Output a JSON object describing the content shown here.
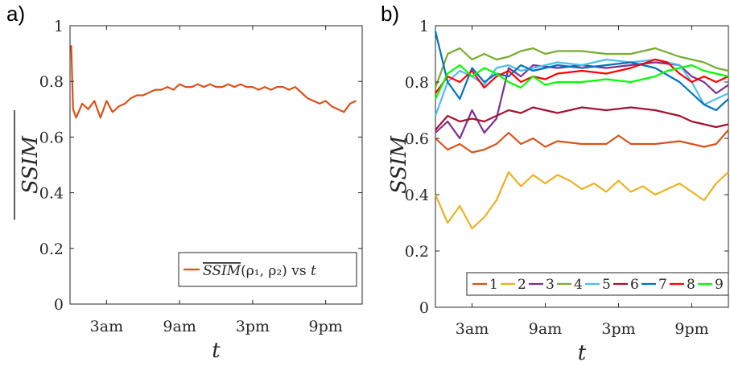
{
  "chart_data": [
    {
      "type": "line",
      "panel_label": "a)",
      "xlabel": "t",
      "ylabel": "SSIM",
      "ylabel_overline": true,
      "xlim": [
        0,
        24
      ],
      "ylim": [
        0,
        1
      ],
      "xticks": [
        {
          "label": "3am",
          "value": 3
        },
        {
          "label": "9am",
          "value": 9
        },
        {
          "label": "3pm",
          "value": 15
        },
        {
          "label": "9pm",
          "value": 21
        }
      ],
      "yticks": [
        "0",
        "0.2",
        "0.4",
        "0.6",
        "0.8",
        "1"
      ],
      "legend": {
        "position": "bottom-right",
        "entry_main": "SSIM",
        "entry_rest": "(ρ₁, ρ₂) vs ",
        "entry_var": "t"
      },
      "series": [
        {
          "color": "#D95319",
          "points": [
            [
              0.1,
              0.93
            ],
            [
              0.25,
              0.7
            ],
            [
              0.5,
              0.67
            ],
            [
              1,
              0.72
            ],
            [
              1.5,
              0.7
            ],
            [
              2,
              0.73
            ],
            [
              2.5,
              0.67
            ],
            [
              3,
              0.73
            ],
            [
              3.5,
              0.69
            ],
            [
              4,
              0.71
            ],
            [
              4.5,
              0.72
            ],
            [
              5,
              0.74
            ],
            [
              5.5,
              0.75
            ],
            [
              6,
              0.75
            ],
            [
              6.5,
              0.76
            ],
            [
              7,
              0.77
            ],
            [
              7.5,
              0.77
            ],
            [
              8,
              0.78
            ],
            [
              8.5,
              0.77
            ],
            [
              9,
              0.79
            ],
            [
              9.5,
              0.78
            ],
            [
              10,
              0.78
            ],
            [
              10.5,
              0.79
            ],
            [
              11,
              0.78
            ],
            [
              11.5,
              0.79
            ],
            [
              12,
              0.78
            ],
            [
              12.5,
              0.78
            ],
            [
              13,
              0.79
            ],
            [
              13.5,
              0.78
            ],
            [
              14,
              0.79
            ],
            [
              14.5,
              0.78
            ],
            [
              15,
              0.78
            ],
            [
              15.5,
              0.77
            ],
            [
              16,
              0.78
            ],
            [
              16.5,
              0.77
            ],
            [
              17,
              0.78
            ],
            [
              17.5,
              0.78
            ],
            [
              18,
              0.77
            ],
            [
              18.5,
              0.78
            ],
            [
              19,
              0.76
            ],
            [
              19.5,
              0.74
            ],
            [
              20,
              0.73
            ],
            [
              20.5,
              0.72
            ],
            [
              21,
              0.73
            ],
            [
              21.5,
              0.71
            ],
            [
              22,
              0.7
            ],
            [
              22.5,
              0.69
            ],
            [
              23,
              0.72
            ],
            [
              23.5,
              0.73
            ]
          ]
        }
      ]
    },
    {
      "type": "line",
      "panel_label": "b)",
      "xlabel": "t",
      "ylabel": "SSIM",
      "ylabel_overline": false,
      "xlim": [
        0,
        24
      ],
      "ylim": [
        0,
        1
      ],
      "xticks": [
        {
          "label": "3am",
          "value": 3
        },
        {
          "label": "9am",
          "value": 9
        },
        {
          "label": "3pm",
          "value": 15
        },
        {
          "label": "9pm",
          "value": 21
        }
      ],
      "yticks": [
        "0",
        "0.2",
        "0.4",
        "0.6",
        "0.8",
        "1"
      ],
      "legend": {
        "position": "bottom",
        "entries": [
          "1",
          "2",
          "3",
          "4",
          "5",
          "6",
          "7",
          "8",
          "9"
        ]
      },
      "series": [
        {
          "name": "1",
          "color": "#D95319",
          "points": [
            [
              0,
              0.6
            ],
            [
              1,
              0.56
            ],
            [
              2,
              0.58
            ],
            [
              3,
              0.55
            ],
            [
              4,
              0.56
            ],
            [
              5,
              0.58
            ],
            [
              6,
              0.62
            ],
            [
              7,
              0.58
            ],
            [
              8,
              0.6
            ],
            [
              9,
              0.57
            ],
            [
              10,
              0.59
            ],
            [
              12,
              0.58
            ],
            [
              14,
              0.58
            ],
            [
              15,
              0.61
            ],
            [
              16,
              0.58
            ],
            [
              18,
              0.58
            ],
            [
              20,
              0.59
            ],
            [
              21,
              0.58
            ],
            [
              22,
              0.57
            ],
            [
              23,
              0.58
            ],
            [
              24,
              0.63
            ]
          ]
        },
        {
          "name": "2",
          "color": "#EDB120",
          "points": [
            [
              0,
              0.4
            ],
            [
              1,
              0.3
            ],
            [
              2,
              0.36
            ],
            [
              3,
              0.28
            ],
            [
              4,
              0.32
            ],
            [
              5,
              0.38
            ],
            [
              6,
              0.48
            ],
            [
              7,
              0.43
            ],
            [
              8,
              0.47
            ],
            [
              9,
              0.44
            ],
            [
              10,
              0.47
            ],
            [
              11,
              0.45
            ],
            [
              12,
              0.42
            ],
            [
              13,
              0.44
            ],
            [
              14,
              0.41
            ],
            [
              15,
              0.45
            ],
            [
              16,
              0.41
            ],
            [
              17,
              0.43
            ],
            [
              18,
              0.4
            ],
            [
              19,
              0.42
            ],
            [
              20,
              0.44
            ],
            [
              21,
              0.41
            ],
            [
              22,
              0.38
            ],
            [
              23,
              0.44
            ],
            [
              24,
              0.48
            ]
          ]
        },
        {
          "name": "3",
          "color": "#7E2F8E",
          "points": [
            [
              0,
              0.62
            ],
            [
              1,
              0.66
            ],
            [
              2,
              0.6
            ],
            [
              3,
              0.7
            ],
            [
              4,
              0.62
            ],
            [
              5,
              0.67
            ],
            [
              6,
              0.85
            ],
            [
              7,
              0.82
            ],
            [
              8,
              0.86
            ],
            [
              10,
              0.85
            ],
            [
              12,
              0.86
            ],
            [
              14,
              0.85
            ],
            [
              16,
              0.86
            ],
            [
              18,
              0.87
            ],
            [
              20,
              0.86
            ],
            [
              21,
              0.82
            ],
            [
              22,
              0.8
            ],
            [
              23,
              0.76
            ],
            [
              24,
              0.79
            ]
          ]
        },
        {
          "name": "4",
          "color": "#77AC30",
          "points": [
            [
              0,
              0.78
            ],
            [
              1,
              0.9
            ],
            [
              2,
              0.92
            ],
            [
              3,
              0.88
            ],
            [
              4,
              0.9
            ],
            [
              5,
              0.88
            ],
            [
              6,
              0.89
            ],
            [
              7,
              0.91
            ],
            [
              8,
              0.92
            ],
            [
              9,
              0.9
            ],
            [
              10,
              0.91
            ],
            [
              12,
              0.91
            ],
            [
              14,
              0.9
            ],
            [
              16,
              0.9
            ],
            [
              18,
              0.92
            ],
            [
              20,
              0.89
            ],
            [
              21,
              0.88
            ],
            [
              22,
              0.87
            ],
            [
              23,
              0.85
            ],
            [
              24,
              0.84
            ]
          ]
        },
        {
          "name": "5",
          "color": "#4DBEEE",
          "points": [
            [
              0,
              0.68
            ],
            [
              1,
              0.8
            ],
            [
              2,
              0.84
            ],
            [
              3,
              0.82
            ],
            [
              4,
              0.79
            ],
            [
              5,
              0.85
            ],
            [
              6,
              0.86
            ],
            [
              7,
              0.84
            ],
            [
              8,
              0.85
            ],
            [
              9,
              0.86
            ],
            [
              10,
              0.87
            ],
            [
              12,
              0.86
            ],
            [
              14,
              0.88
            ],
            [
              16,
              0.87
            ],
            [
              18,
              0.88
            ],
            [
              20,
              0.86
            ],
            [
              21,
              0.8
            ],
            [
              22,
              0.72
            ],
            [
              23,
              0.74
            ],
            [
              24,
              0.76
            ]
          ]
        },
        {
          "name": "6",
          "color": "#A2142F",
          "points": [
            [
              0,
              0.63
            ],
            [
              1,
              0.68
            ],
            [
              2,
              0.66
            ],
            [
              3,
              0.67
            ],
            [
              4,
              0.66
            ],
            [
              5,
              0.68
            ],
            [
              6,
              0.7
            ],
            [
              7,
              0.69
            ],
            [
              8,
              0.71
            ],
            [
              9,
              0.7
            ],
            [
              10,
              0.69
            ],
            [
              12,
              0.71
            ],
            [
              14,
              0.7
            ],
            [
              16,
              0.71
            ],
            [
              18,
              0.7
            ],
            [
              20,
              0.68
            ],
            [
              21,
              0.66
            ],
            [
              22,
              0.65
            ],
            [
              23,
              0.64
            ],
            [
              24,
              0.65
            ]
          ]
        },
        {
          "name": "7",
          "color": "#0072BD",
          "points": [
            [
              0,
              0.98
            ],
            [
              1,
              0.8
            ],
            [
              2,
              0.74
            ],
            [
              3,
              0.85
            ],
            [
              4,
              0.8
            ],
            [
              5,
              0.83
            ],
            [
              6,
              0.82
            ],
            [
              7,
              0.86
            ],
            [
              8,
              0.84
            ],
            [
              9,
              0.85
            ],
            [
              10,
              0.86
            ],
            [
              12,
              0.85
            ],
            [
              14,
              0.86
            ],
            [
              16,
              0.87
            ],
            [
              18,
              0.85
            ],
            [
              20,
              0.8
            ],
            [
              21,
              0.76
            ],
            [
              22,
              0.72
            ],
            [
              23,
              0.7
            ],
            [
              24,
              0.74
            ]
          ]
        },
        {
          "name": "8",
          "color": "#FF0000",
          "points": [
            [
              0,
              0.76
            ],
            [
              1,
              0.82
            ],
            [
              2,
              0.8
            ],
            [
              3,
              0.84
            ],
            [
              4,
              0.78
            ],
            [
              5,
              0.82
            ],
            [
              6,
              0.84
            ],
            [
              7,
              0.8
            ],
            [
              8,
              0.82
            ],
            [
              9,
              0.81
            ],
            [
              10,
              0.83
            ],
            [
              12,
              0.84
            ],
            [
              14,
              0.83
            ],
            [
              16,
              0.85
            ],
            [
              18,
              0.88
            ],
            [
              19,
              0.87
            ],
            [
              20,
              0.83
            ],
            [
              21,
              0.8
            ],
            [
              22,
              0.82
            ],
            [
              23,
              0.8
            ],
            [
              24,
              0.82
            ]
          ]
        },
        {
          "name": "9",
          "color": "#00FF00",
          "points": [
            [
              0,
              0.74
            ],
            [
              1,
              0.83
            ],
            [
              2,
              0.86
            ],
            [
              3,
              0.82
            ],
            [
              4,
              0.85
            ],
            [
              5,
              0.83
            ],
            [
              6,
              0.8
            ],
            [
              7,
              0.78
            ],
            [
              8,
              0.82
            ],
            [
              9,
              0.79
            ],
            [
              10,
              0.8
            ],
            [
              12,
              0.8
            ],
            [
              14,
              0.81
            ],
            [
              16,
              0.8
            ],
            [
              18,
              0.82
            ],
            [
              19,
              0.84
            ],
            [
              20,
              0.85
            ],
            [
              21,
              0.86
            ],
            [
              22,
              0.84
            ],
            [
              23,
              0.83
            ],
            [
              24,
              0.82
            ]
          ]
        }
      ]
    }
  ]
}
